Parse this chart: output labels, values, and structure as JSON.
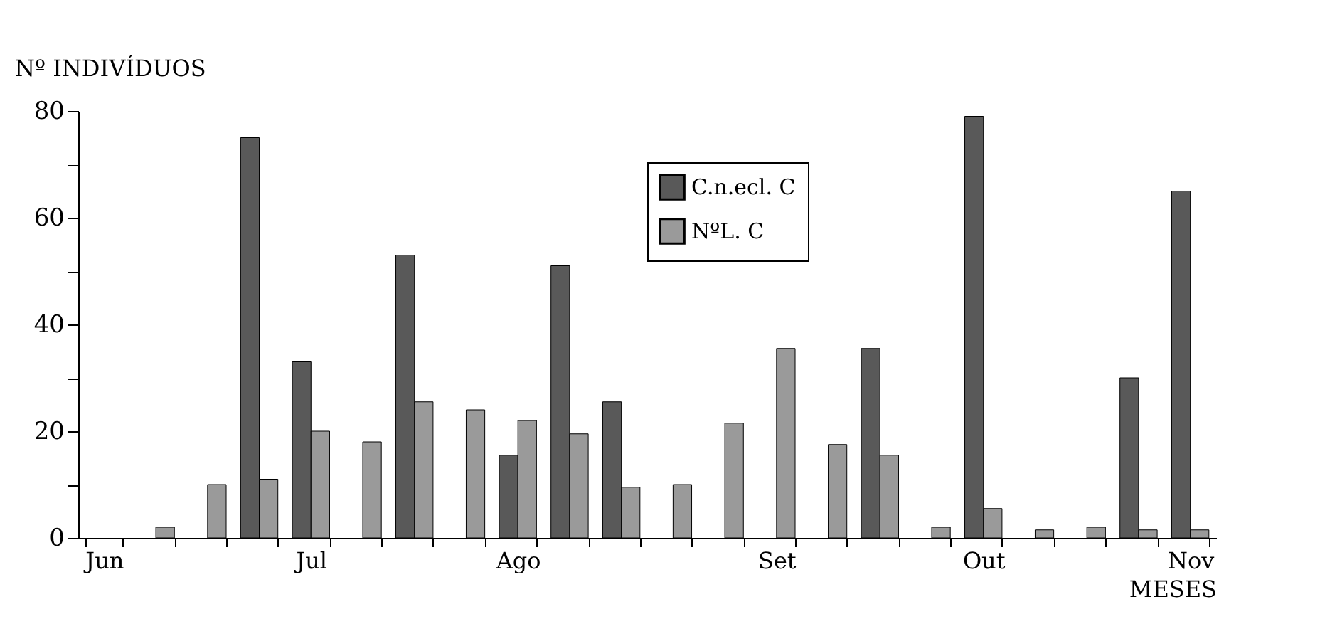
{
  "chart_data": {
    "type": "bar",
    "xlabel": "MESES",
    "ylabel": "Nº INDIVÍDUOS",
    "categories": [
      "Jun",
      null,
      null,
      null,
      "Jul",
      null,
      null,
      null,
      "Ago",
      null,
      null,
      null,
      null,
      "Set",
      null,
      null,
      null,
      "Out",
      null,
      null,
      null,
      "Nov"
    ],
    "series": [
      {
        "name": "C.n.ecl. C",
        "color": "#595959",
        "values": [
          null,
          null,
          null,
          75,
          33,
          null,
          53,
          null,
          15.5,
          51,
          25.5,
          null,
          null,
          null,
          null,
          35.5,
          null,
          79,
          null,
          null,
          30,
          65
        ]
      },
      {
        "name": "NºL. C",
        "color": "#9a9a9a",
        "values": [
          null,
          2,
          10,
          11,
          20,
          18,
          25.5,
          24,
          22,
          19.5,
          9.5,
          10,
          21.5,
          35.5,
          17.5,
          15.5,
          2,
          5.5,
          1.5,
          2,
          1.5,
          1.5
        ]
      }
    ],
    "ylim": [
      0,
      80
    ],
    "yticks": [
      0,
      {
        "value": 10,
        "label": null
      },
      20,
      {
        "value": 30,
        "label": null
      },
      40,
      {
        "value": 50,
        "label": null
      },
      60,
      {
        "value": 70,
        "label": null
      },
      80
    ],
    "legend": "top",
    "grid": false
  }
}
